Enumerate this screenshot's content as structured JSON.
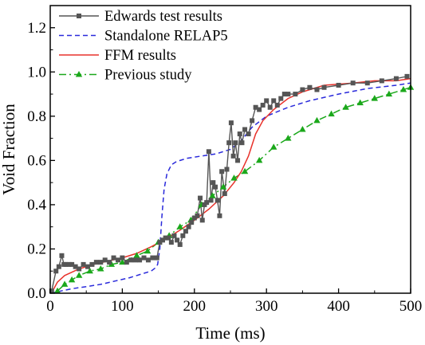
{
  "chart_data": {
    "type": "line",
    "xlabel": "Time (ms)",
    "ylabel": "Void Fraction",
    "xlim": [
      0,
      500
    ],
    "ylim": [
      0,
      1.3
    ],
    "xticks": [
      0,
      100,
      200,
      300,
      400,
      500
    ],
    "xtick_labels": [
      "0",
      "100",
      "200",
      "300",
      "400",
      "500"
    ],
    "yticks": [
      0,
      0.2,
      0.4,
      0.6,
      0.8,
      1.0,
      1.2
    ],
    "ytick_labels": [
      "0.0",
      "0.2",
      "0.4",
      "0.6",
      "0.8",
      "1.0",
      "1.2"
    ],
    "grid": false,
    "legend_position": "top-left",
    "series": [
      {
        "name": "Edwards test results",
        "color": "#555555",
        "style": "solid",
        "marker": "square",
        "points": [
          [
            2,
            0.01
          ],
          [
            8,
            0.1
          ],
          [
            12,
            0.12
          ],
          [
            16,
            0.17
          ],
          [
            19,
            0.13
          ],
          [
            22,
            0.13
          ],
          [
            26,
            0.13
          ],
          [
            30,
            0.13
          ],
          [
            35,
            0.12
          ],
          [
            40,
            0.11
          ],
          [
            46,
            0.13
          ],
          [
            52,
            0.12
          ],
          [
            58,
            0.13
          ],
          [
            64,
            0.14
          ],
          [
            70,
            0.14
          ],
          [
            76,
            0.15
          ],
          [
            82,
            0.14
          ],
          [
            88,
            0.16
          ],
          [
            94,
            0.15
          ],
          [
            100,
            0.16
          ],
          [
            106,
            0.14
          ],
          [
            112,
            0.15
          ],
          [
            118,
            0.15
          ],
          [
            124,
            0.15
          ],
          [
            130,
            0.16
          ],
          [
            136,
            0.15
          ],
          [
            142,
            0.16
          ],
          [
            148,
            0.16
          ],
          [
            152,
            0.23
          ],
          [
            156,
            0.24
          ],
          [
            160,
            0.25
          ],
          [
            164,
            0.25
          ],
          [
            168,
            0.23
          ],
          [
            172,
            0.26
          ],
          [
            176,
            0.24
          ],
          [
            180,
            0.22
          ],
          [
            184,
            0.26
          ],
          [
            188,
            0.28
          ],
          [
            192,
            0.3
          ],
          [
            196,
            0.32
          ],
          [
            200,
            0.34
          ],
          [
            204,
            0.35
          ],
          [
            208,
            0.43
          ],
          [
            211,
            0.33
          ],
          [
            214,
            0.4
          ],
          [
            217,
            0.41
          ],
          [
            220,
            0.64
          ],
          [
            223,
            0.42
          ],
          [
            226,
            0.5
          ],
          [
            229,
            0.48
          ],
          [
            232,
            0.42
          ],
          [
            235,
            0.35
          ],
          [
            238,
            0.55
          ],
          [
            242,
            0.45
          ],
          [
            245,
            0.56
          ],
          [
            248,
            0.68
          ],
          [
            251,
            0.77
          ],
          [
            254,
            0.62
          ],
          [
            257,
            0.68
          ],
          [
            260,
            0.6
          ],
          [
            263,
            0.72
          ],
          [
            266,
            0.68
          ],
          [
            270,
            0.74
          ],
          [
            275,
            0.72
          ],
          [
            280,
            0.78
          ],
          [
            285,
            0.84
          ],
          [
            290,
            0.83
          ],
          [
            295,
            0.85
          ],
          [
            300,
            0.87
          ],
          [
            305,
            0.84
          ],
          [
            310,
            0.87
          ],
          [
            315,
            0.85
          ],
          [
            320,
            0.88
          ],
          [
            325,
            0.9
          ],
          [
            330,
            0.9
          ],
          [
            340,
            0.9
          ],
          [
            350,
            0.92
          ],
          [
            360,
            0.93
          ],
          [
            370,
            0.92
          ],
          [
            380,
            0.93
          ],
          [
            400,
            0.94
          ],
          [
            420,
            0.95
          ],
          [
            440,
            0.95
          ],
          [
            460,
            0.96
          ],
          [
            480,
            0.97
          ],
          [
            495,
            0.98
          ]
        ]
      },
      {
        "name": "Standalone RELAP5",
        "color": "#2a2adb",
        "style": "dashed",
        "marker": "none",
        "points": [
          [
            0,
            0.0
          ],
          [
            15,
            0.01
          ],
          [
            30,
            0.02
          ],
          [
            50,
            0.03
          ],
          [
            70,
            0.04
          ],
          [
            90,
            0.055
          ],
          [
            110,
            0.07
          ],
          [
            130,
            0.09
          ],
          [
            140,
            0.1
          ],
          [
            146,
            0.115
          ],
          [
            149,
            0.13
          ],
          [
            152,
            0.2
          ],
          [
            155,
            0.35
          ],
          [
            158,
            0.47
          ],
          [
            162,
            0.54
          ],
          [
            168,
            0.58
          ],
          [
            175,
            0.595
          ],
          [
            190,
            0.61
          ],
          [
            210,
            0.62
          ],
          [
            230,
            0.63
          ],
          [
            250,
            0.65
          ],
          [
            265,
            0.69
          ],
          [
            280,
            0.75
          ],
          [
            300,
            0.8
          ],
          [
            330,
            0.84
          ],
          [
            360,
            0.87
          ],
          [
            400,
            0.9
          ],
          [
            440,
            0.925
          ],
          [
            480,
            0.94
          ],
          [
            500,
            0.95
          ]
        ]
      },
      {
        "name": "FFM results",
        "color": "#e8322b",
        "style": "solid",
        "marker": "none",
        "points": [
          [
            0,
            0.0
          ],
          [
            5,
            0.02
          ],
          [
            10,
            0.05
          ],
          [
            20,
            0.08
          ],
          [
            40,
            0.11
          ],
          [
            60,
            0.13
          ],
          [
            80,
            0.145
          ],
          [
            100,
            0.16
          ],
          [
            120,
            0.18
          ],
          [
            140,
            0.21
          ],
          [
            160,
            0.245
          ],
          [
            180,
            0.285
          ],
          [
            200,
            0.33
          ],
          [
            220,
            0.38
          ],
          [
            240,
            0.44
          ],
          [
            255,
            0.5
          ],
          [
            265,
            0.55
          ],
          [
            275,
            0.62
          ],
          [
            285,
            0.72
          ],
          [
            295,
            0.78
          ],
          [
            310,
            0.83
          ],
          [
            330,
            0.88
          ],
          [
            350,
            0.91
          ],
          [
            380,
            0.94
          ],
          [
            420,
            0.95
          ],
          [
            450,
            0.96
          ],
          [
            480,
            0.96
          ],
          [
            500,
            0.97
          ]
        ]
      },
      {
        "name": "Previous study",
        "color": "#1ba81b",
        "style": "dashdot",
        "marker": "triangle",
        "points": [
          [
            10,
            0.01
          ],
          [
            20,
            0.04
          ],
          [
            30,
            0.06
          ],
          [
            40,
            0.08
          ],
          [
            55,
            0.1
          ],
          [
            70,
            0.11
          ],
          [
            85,
            0.13
          ],
          [
            100,
            0.14
          ],
          [
            120,
            0.17
          ],
          [
            135,
            0.19
          ],
          [
            150,
            0.23
          ],
          [
            165,
            0.26
          ],
          [
            180,
            0.3
          ],
          [
            195,
            0.33
          ],
          [
            210,
            0.4
          ],
          [
            225,
            0.44
          ],
          [
            240,
            0.48
          ],
          [
            255,
            0.52
          ],
          [
            270,
            0.55
          ],
          [
            290,
            0.6
          ],
          [
            310,
            0.66
          ],
          [
            330,
            0.7
          ],
          [
            350,
            0.74
          ],
          [
            370,
            0.78
          ],
          [
            390,
            0.81
          ],
          [
            410,
            0.84
          ],
          [
            430,
            0.86
          ],
          [
            450,
            0.88
          ],
          [
            470,
            0.9
          ],
          [
            490,
            0.92
          ],
          [
            500,
            0.93
          ]
        ]
      }
    ]
  }
}
